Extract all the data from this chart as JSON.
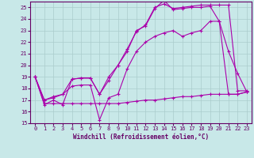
{
  "background_color": "#c8e8e8",
  "line_color": "#aa00aa",
  "grid_color": "#aacccc",
  "xlabel": "Windchill (Refroidissement éolien,°C)",
  "xlim": [
    -0.5,
    23.5
  ],
  "ylim": [
    15,
    25.5
  ],
  "yticks": [
    15,
    16,
    17,
    18,
    19,
    20,
    21,
    22,
    23,
    24,
    25
  ],
  "xticks": [
    0,
    1,
    2,
    3,
    4,
    5,
    6,
    7,
    8,
    9,
    10,
    11,
    12,
    13,
    14,
    15,
    16,
    17,
    18,
    19,
    20,
    21,
    22,
    23
  ],
  "series": [
    {
      "x": [
        0,
        1,
        2,
        3,
        4,
        5,
        6,
        7,
        8,
        9,
        10,
        11,
        12,
        13,
        14,
        15,
        16,
        17,
        18,
        19,
        20,
        21,
        22,
        23
      ],
      "y": [
        19,
        16.6,
        17.0,
        16.6,
        18.8,
        18.9,
        18.9,
        17.5,
        18.7,
        20.0,
        21.2,
        23.0,
        23.4,
        24.9,
        25.6,
        24.8,
        24.9,
        25.0,
        25.0,
        25.1,
        23.8,
        21.2,
        19.3,
        17.7
      ]
    },
    {
      "x": [
        0,
        1,
        2,
        3,
        4,
        5,
        6,
        7,
        8,
        9,
        10,
        11,
        12,
        13,
        14,
        15,
        16,
        17,
        18,
        19,
        20,
        21,
        22,
        23
      ],
      "y": [
        19,
        17.0,
        17.3,
        17.5,
        18.8,
        18.9,
        18.9,
        17.5,
        19.0,
        20.0,
        21.4,
        22.9,
        23.5,
        25.0,
        25.3,
        24.9,
        25.0,
        25.1,
        25.2,
        25.2,
        25.2,
        25.2,
        17.8,
        17.8
      ]
    },
    {
      "x": [
        0,
        1,
        2,
        3,
        4,
        5,
        6,
        7,
        8,
        9,
        10,
        11,
        12,
        13,
        14,
        15,
        16,
        17,
        18,
        19,
        20,
        21,
        22,
        23
      ],
      "y": [
        19,
        17.0,
        17.2,
        17.5,
        18.2,
        18.3,
        18.3,
        15.3,
        17.2,
        17.5,
        19.7,
        21.2,
        22.0,
        22.5,
        22.8,
        23.0,
        22.5,
        22.8,
        23.0,
        23.8,
        23.8,
        17.5,
        17.5,
        17.7
      ]
    },
    {
      "x": [
        0,
        1,
        2,
        3,
        4,
        5,
        6,
        7,
        8,
        9,
        10,
        11,
        12,
        13,
        14,
        15,
        16,
        17,
        18,
        19,
        20,
        21,
        22,
        23
      ],
      "y": [
        19,
        16.7,
        16.7,
        16.7,
        16.7,
        16.7,
        16.7,
        16.7,
        16.7,
        16.7,
        16.8,
        16.9,
        17.0,
        17.0,
        17.1,
        17.2,
        17.3,
        17.3,
        17.4,
        17.5,
        17.5,
        17.5,
        17.5,
        17.7
      ]
    }
  ]
}
